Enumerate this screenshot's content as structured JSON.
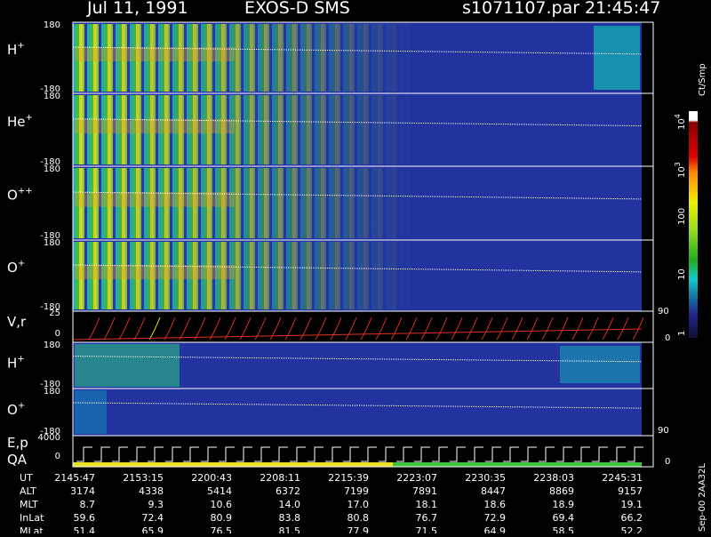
{
  "header": {
    "date": "Jul 11, 1991",
    "instrument": "EXOS-D SMS",
    "file": "s1071107.par",
    "time": "21:45:47"
  },
  "panels": [
    {
      "ion": "H",
      "charge": "+",
      "top": "180",
      "bottom": "-180"
    },
    {
      "ion": "He",
      "charge": "+",
      "top": "180",
      "bottom": "-180"
    },
    {
      "ion": "O",
      "charge": "++",
      "top": "180",
      "bottom": "-180"
    },
    {
      "ion": "O",
      "charge": "+",
      "top": "180",
      "bottom": "-180"
    }
  ],
  "velocity": {
    "label": "V,r",
    "top": "25",
    "zero": "0",
    "right_top": "90",
    "right_zero": "0"
  },
  "lower_panels": [
    {
      "ion": "H",
      "charge": "+",
      "top": "180",
      "bottom": "-180"
    },
    {
      "ion": "O",
      "charge": "+",
      "top": "180",
      "bottom": "-180",
      "right": "90"
    }
  ],
  "energy": {
    "label": "E,p",
    "qa": "QA",
    "top": "4000",
    "zero": "0",
    "right_zero": "0"
  },
  "colorbar": {
    "unit": "Ct/Smp",
    "ticks": [
      {
        "base": "10",
        "exp": "4"
      },
      {
        "base": "10",
        "exp": "3"
      },
      {
        "base": "100"
      },
      {
        "base": "10"
      },
      {
        "base": "1"
      }
    ]
  },
  "side": "Sep-00  2AA32L",
  "footer": {
    "rows": [
      [
        "UT",
        "2145:47",
        "2153:15",
        "2200:43",
        "2208:11",
        "2215:39",
        "2223:07",
        "2230:35",
        "2238:03",
        "2245:31"
      ],
      [
        "ALT",
        "3174",
        "4338",
        "5414",
        "6372",
        "7199",
        "7891",
        "8447",
        "8869",
        "9157"
      ],
      [
        "MLT",
        "8.7",
        "9.3",
        "10.6",
        "14.0",
        "17.0",
        "18.1",
        "18.6",
        "18.9",
        "19.1"
      ],
      [
        "InLat",
        "59.6",
        "72.4",
        "80.9",
        "83.8",
        "80.8",
        "76.7",
        "72.9",
        "69.4",
        "66.2"
      ],
      [
        "MLat",
        "51.4",
        "65.9",
        "76.5",
        "81.5",
        "77.9",
        "71.5",
        "64.9",
        "58.5",
        "52.2"
      ]
    ]
  }
}
